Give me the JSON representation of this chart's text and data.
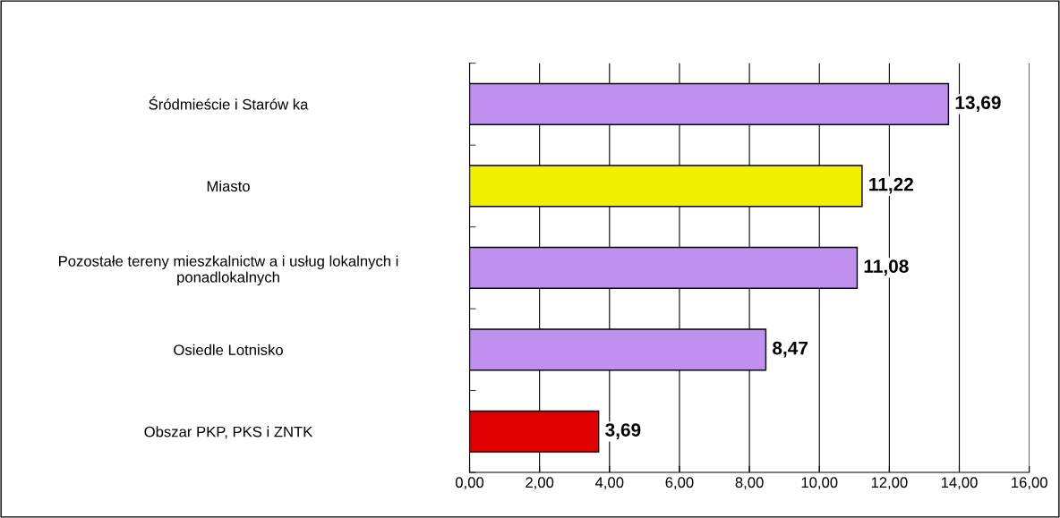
{
  "chart_data": {
    "type": "bar",
    "orientation": "horizontal",
    "categories": [
      "Śródmieście i Starów ka",
      "Miasto",
      "Pozostałe tereny mieszkalnictw a i usług lokalnych i\nponadlokalnych",
      "Osiedle Lotnisko",
      "Obszar PKP, PKS i ZNTK"
    ],
    "values": [
      13.69,
      11.22,
      11.08,
      8.47,
      3.69
    ],
    "colors": [
      "#c090f0",
      "#f0f000",
      "#c090f0",
      "#c090f0",
      "#e00000"
    ],
    "value_labels": [
      "13,69",
      "11,22",
      "11,08",
      "8,47",
      "3,69"
    ],
    "xlim": [
      0,
      16
    ],
    "xticks": [
      {
        "value": 0,
        "label": "0,00"
      },
      {
        "value": 2,
        "label": "2,00"
      },
      {
        "value": 4,
        "label": "4,00"
      },
      {
        "value": 6,
        "label": "6,00"
      },
      {
        "value": 8,
        "label": "8,00"
      },
      {
        "value": 10,
        "label": "10,00"
      },
      {
        "value": 12,
        "label": "12,00"
      },
      {
        "value": 14,
        "label": "14,00"
      },
      {
        "value": 16,
        "label": "16,00"
      }
    ],
    "grid": "x",
    "legend": false
  }
}
